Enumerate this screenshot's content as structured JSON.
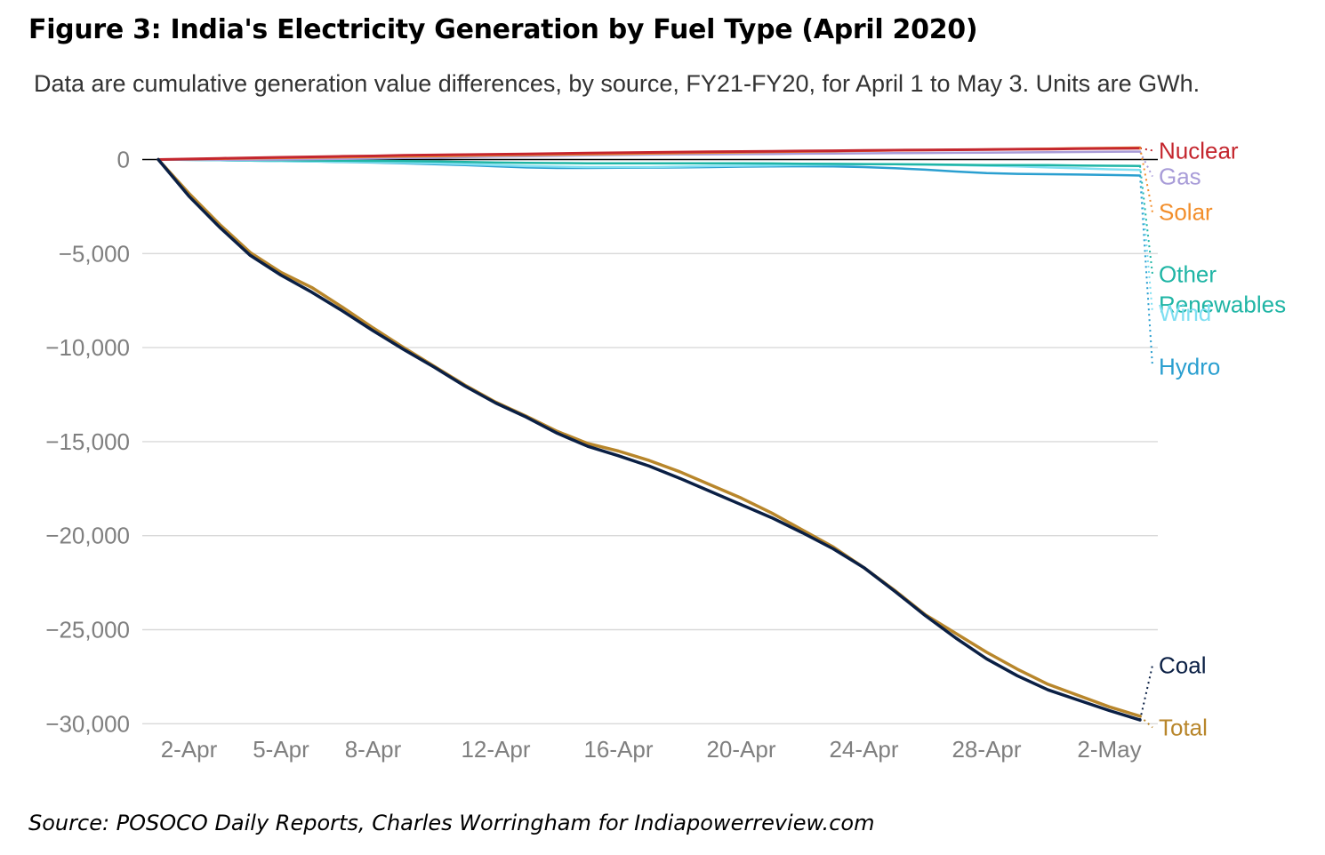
{
  "figure": {
    "title": "Figure 3: India's Electricity Generation by Fuel Type (April 2020)",
    "subtitle": "Data are cumulative generation value differences, by source, FY21-FY20, for April 1 to May 3. Units are GWh.",
    "source": "Source: POSOCO Daily Reports, Charles Worringham for Indiapowerreview.com"
  },
  "chart_data": {
    "type": "line",
    "title": "Figure 3: India's Electricity Generation by Fuel Type (April 2020)",
    "subtitle": "Data are cumulative generation value differences, by source, FY21-FY20, for April 1 to May 3. Units are GWh.",
    "xlabel": "",
    "ylabel": "",
    "x": [
      "2020-04-01",
      "2020-04-02",
      "2020-04-03",
      "2020-04-04",
      "2020-04-05",
      "2020-04-06",
      "2020-04-07",
      "2020-04-08",
      "2020-04-09",
      "2020-04-10",
      "2020-04-11",
      "2020-04-12",
      "2020-04-13",
      "2020-04-14",
      "2020-04-15",
      "2020-04-16",
      "2020-04-17",
      "2020-04-18",
      "2020-04-19",
      "2020-04-20",
      "2020-04-21",
      "2020-04-22",
      "2020-04-23",
      "2020-04-24",
      "2020-04-25",
      "2020-04-26",
      "2020-04-27",
      "2020-04-28",
      "2020-04-29",
      "2020-04-30",
      "2020-05-01",
      "2020-05-02",
      "2020-05-03"
    ],
    "x_ticks": [
      {
        "x": "2020-04-02",
        "label": "2-Apr"
      },
      {
        "x": "2020-04-05",
        "label": "5-Apr"
      },
      {
        "x": "2020-04-08",
        "label": "8-Apr"
      },
      {
        "x": "2020-04-12",
        "label": "12-Apr"
      },
      {
        "x": "2020-04-16",
        "label": "16-Apr"
      },
      {
        "x": "2020-04-20",
        "label": "20-Apr"
      },
      {
        "x": "2020-04-24",
        "label": "24-Apr"
      },
      {
        "x": "2020-04-28",
        "label": "28-Apr"
      },
      {
        "x": "2020-05-02",
        "label": "2-May"
      }
    ],
    "y_ticks": [
      {
        "value": 0,
        "label": "0"
      },
      {
        "value": -5000,
        "label": "−5,000"
      },
      {
        "value": -10000,
        "label": "−10,000"
      },
      {
        "value": -15000,
        "label": "−15,000"
      },
      {
        "value": -20000,
        "label": "−20,000"
      },
      {
        "value": -25000,
        "label": "−25,000"
      },
      {
        "value": -30000,
        "label": "−30,000"
      }
    ],
    "ylim": [
      -30800,
      1500
    ],
    "grid": true,
    "legend": "direct labels at right end of lines",
    "series": [
      {
        "name": "Total",
        "color": "#b8862b",
        "width": 3.5,
        "label_value": -30200,
        "values": [
          0,
          -1800,
          -3450,
          -4950,
          -6000,
          -6800,
          -7850,
          -8950,
          -10000,
          -11000,
          -12000,
          -12900,
          -13650,
          -14450,
          -15100,
          -15500,
          -16000,
          -16600,
          -17300,
          -18000,
          -18800,
          -19700,
          -20600,
          -21700,
          -22900,
          -24200,
          -25200,
          -26200,
          -27100,
          -27900,
          -28500,
          -29100,
          -29600
        ]
      },
      {
        "name": "Coal",
        "color": "#0a1f44",
        "width": 3.5,
        "label_value": -26900,
        "values": [
          0,
          -1950,
          -3600,
          -5100,
          -6150,
          -7050,
          -8050,
          -9100,
          -10100,
          -11050,
          -12050,
          -12950,
          -13700,
          -14550,
          -15250,
          -15750,
          -16300,
          -16950,
          -17650,
          -18350,
          -19050,
          -19850,
          -20700,
          -21700,
          -22950,
          -24250,
          -25450,
          -26550,
          -27450,
          -28200,
          -28750,
          -29300,
          -29800
        ]
      },
      {
        "name": "Nuclear",
        "color": "#c4262e",
        "width": 3,
        "label_value": 480,
        "values": [
          0,
          30,
          60,
          90,
          120,
          140,
          170,
          190,
          220,
          240,
          260,
          280,
          300,
          320,
          340,
          360,
          380,
          395,
          410,
          425,
          440,
          455,
          470,
          480,
          495,
          510,
          520,
          535,
          550,
          560,
          575,
          590,
          600
        ]
      },
      {
        "name": "Gas",
        "color": "#a89cd8",
        "width": 2.5,
        "label_value": -900,
        "values": [
          0,
          -5,
          -10,
          -10,
          0,
          20,
          40,
          60,
          80,
          100,
          130,
          160,
          180,
          200,
          220,
          240,
          260,
          270,
          280,
          290,
          300,
          310,
          320,
          330,
          340,
          350,
          360,
          370,
          380,
          390,
          400,
          410,
          420
        ]
      },
      {
        "name": "Solar",
        "color": "#f28e2b",
        "width": 2.5,
        "label_value": -2800,
        "values": [
          0,
          20,
          40,
          60,
          80,
          100,
          120,
          140,
          160,
          180,
          200,
          220,
          240,
          260,
          280,
          300,
          320,
          340,
          360,
          380,
          400,
          420,
          440,
          460,
          480,
          500,
          520,
          540,
          560,
          580,
          600,
          620,
          640
        ]
      },
      {
        "name": "Other\nRenewables",
        "color": "#1fb5a5",
        "width": 2.5,
        "label_value": -6100,
        "values": [
          0,
          -10,
          -20,
          -30,
          -40,
          -50,
          -60,
          -70,
          -80,
          -100,
          -130,
          -160,
          -180,
          -190,
          -200,
          -200,
          -200,
          -200,
          -200,
          -200,
          -210,
          -220,
          -230,
          -240,
          -250,
          -260,
          -280,
          -300,
          -300,
          -300,
          -320,
          -330,
          -340
        ]
      },
      {
        "name": "Wind",
        "color": "#7fdff2",
        "width": 2.5,
        "label_value": -8150,
        "values": [
          0,
          -20,
          -40,
          -60,
          -80,
          -100,
          -120,
          -140,
          -170,
          -200,
          -250,
          -300,
          -350,
          -380,
          -400,
          -400,
          -400,
          -380,
          -350,
          -330,
          -310,
          -290,
          -270,
          -250,
          -250,
          -270,
          -300,
          -330,
          -370,
          -420,
          -470,
          -520,
          -560
        ]
      },
      {
        "name": "Hydro",
        "color": "#2a9fd0",
        "width": 2.5,
        "label_value": -11000,
        "values": [
          0,
          -20,
          -40,
          -60,
          -80,
          -100,
          -130,
          -160,
          -200,
          -250,
          -300,
          -360,
          -420,
          -450,
          -450,
          -440,
          -430,
          -420,
          -400,
          -380,
          -370,
          -360,
          -370,
          -400,
          -460,
          -540,
          -640,
          -720,
          -760,
          -780,
          -800,
          -820,
          -850
        ]
      }
    ]
  },
  "colors": {
    "grid": "#d9d9d9",
    "zero_line": "#000000",
    "tick_text": "#7f7f7f"
  }
}
